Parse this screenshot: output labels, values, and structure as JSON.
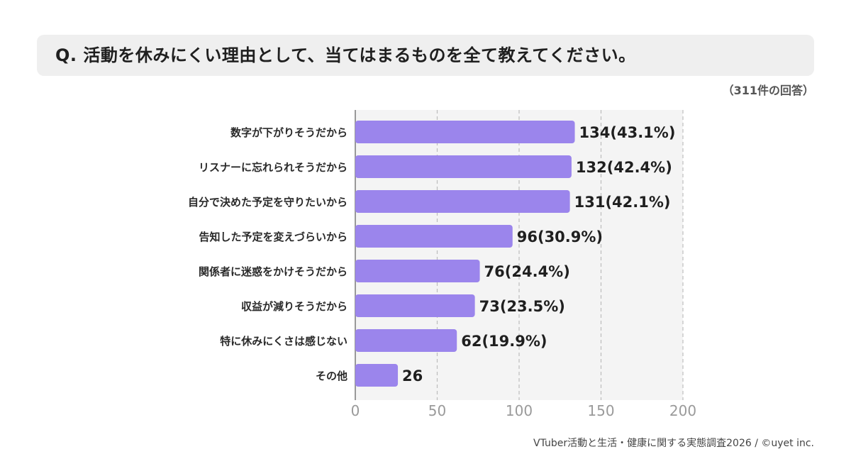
{
  "question": "Q. 活動を休みにくい理由として、当てはまるものを全て教えてください。",
  "response_count": "（311件の回答）",
  "credit": "VTuber活動と生活・健康に関する実態調査2026 / ©uyet inc.",
  "colors": {
    "bar": "#9b85ec",
    "plot_bg": "#f4f4f4",
    "grid": "#bdbdbd",
    "axis": "#999999"
  },
  "chart_data": {
    "type": "bar",
    "orientation": "horizontal",
    "categories": [
      "数字が下がりそうだから",
      "リスナーに忘れられそうだから",
      "自分で決めた予定を守りたいから",
      "告知した予定を変えづらいから",
      "関係者に迷惑をかけそうだから",
      "収益が減りそうだから",
      "特に休みにくさは感じない",
      "その他"
    ],
    "values": [
      134,
      132,
      131,
      96,
      76,
      73,
      62,
      26
    ],
    "data_labels": [
      "134(43.1%)",
      "132(42.4%)",
      "131(42.1%)",
      "96(30.9%)",
      "76(24.4%)",
      "73(23.5%)",
      "62(19.9%)",
      "26"
    ],
    "xlim": [
      0,
      200
    ],
    "xticks": [
      0,
      50,
      100,
      150,
      200
    ],
    "grid": true,
    "legend": "none"
  }
}
